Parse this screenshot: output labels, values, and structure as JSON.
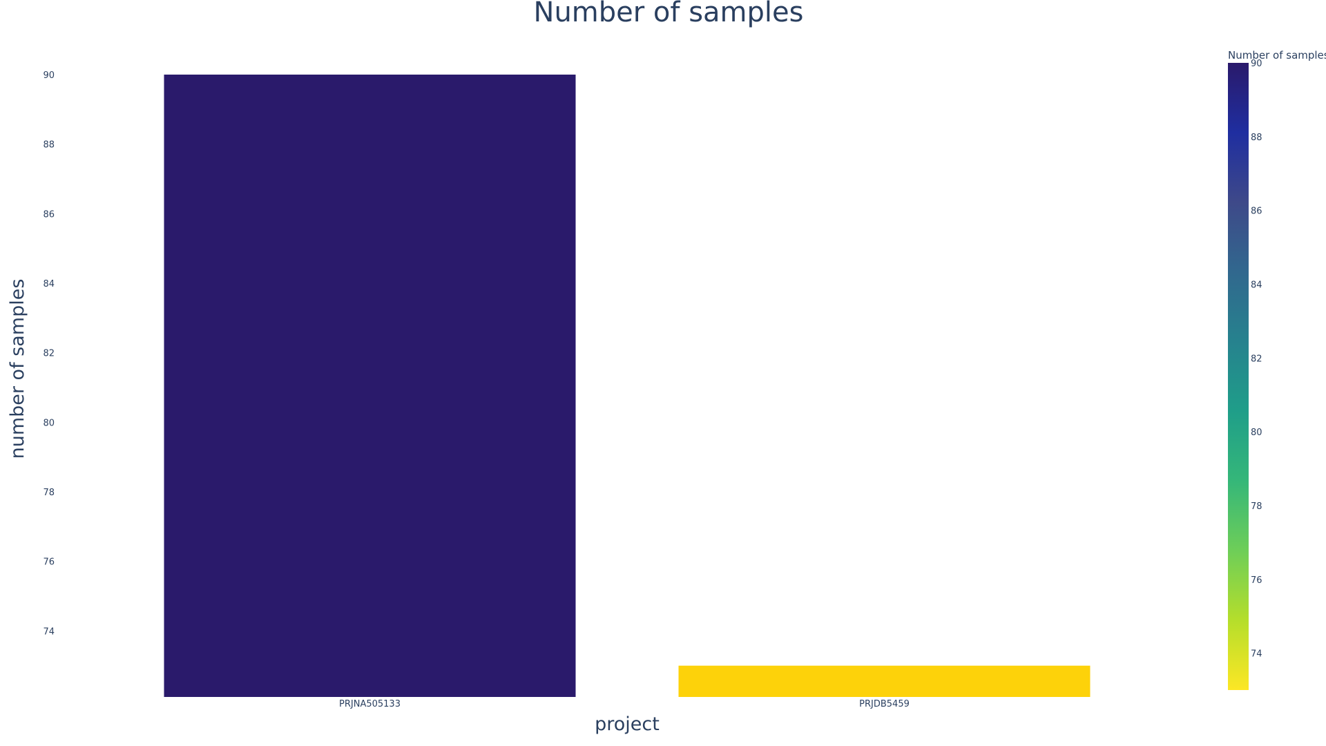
{
  "chart_data": {
    "type": "bar",
    "title": "Number of samples",
    "xlabel": "project",
    "ylabel": "number of samples",
    "categories": [
      "PRJNA505133",
      "PRJDB5459"
    ],
    "values": [
      90,
      73
    ],
    "ylim": [
      72.1,
      90
    ],
    "yticks": [
      74,
      76,
      78,
      80,
      82,
      84,
      86,
      88,
      90
    ],
    "grid": false,
    "colorbar": {
      "title": "Number of samples",
      "range": [
        73,
        90
      ],
      "ticks": [
        74,
        76,
        78,
        80,
        82,
        84,
        86,
        88,
        90
      ],
      "colorscale": [
        "#fde725",
        "#b5de2b",
        "#6ece58",
        "#35b779",
        "#1f9e89",
        "#26828e",
        "#31688e",
        "#3e4989",
        "#1f2ea0",
        "#2a1a6b"
      ]
    },
    "bar_colors": [
      "#2a1a6b",
      "#fdd20a"
    ]
  }
}
